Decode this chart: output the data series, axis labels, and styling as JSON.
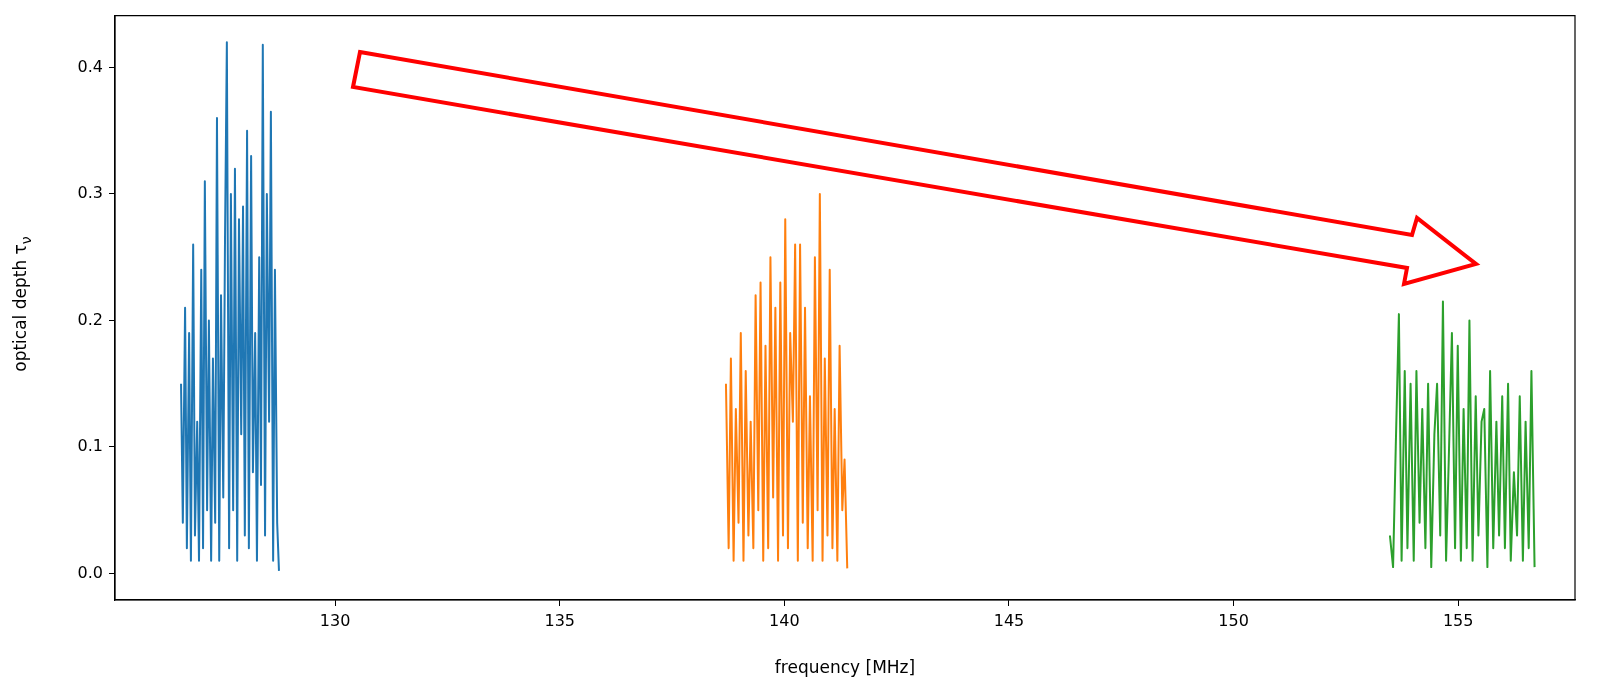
{
  "chart_data": {
    "type": "line",
    "xlabel": "frequency [MHz]",
    "ylabel": "optical depth τ$_{ν}$",
    "xlim": [
      125.1,
      157.6
    ],
    "xticks": [
      130,
      135,
      140,
      145,
      150,
      155
    ],
    "ylim": [
      -0.021,
      0.441
    ],
    "yticks": [
      {
        "value": 0,
        "label": "0.0"
      },
      0.1,
      0.2,
      0.3,
      0.4
    ],
    "grid": false,
    "legend": false,
    "marker": "none",
    "line_style": "solid",
    "series": [
      {
        "color": "#1f77b4",
        "x": [
          126.57,
          126.61,
          126.66,
          126.7,
          126.75,
          126.79,
          126.84,
          126.88,
          126.93,
          126.97,
          127.02,
          127.06,
          127.1,
          127.15,
          127.19,
          127.24,
          127.28,
          127.33,
          127.37,
          127.42,
          127.46,
          127.51,
          127.55,
          127.59,
          127.64,
          127.68,
          127.73,
          127.77,
          127.82,
          127.86,
          127.91,
          127.95,
          127.99,
          128.04,
          128.08,
          128.13,
          128.17,
          128.22,
          128.26,
          128.31,
          128.35,
          128.39,
          128.44,
          128.48,
          128.53,
          128.57,
          128.62,
          128.66,
          128.71,
          128.75
        ],
        "values": [
          0.15,
          0.04,
          0.21,
          0.02,
          0.19,
          0.01,
          0.26,
          0.03,
          0.12,
          0.01,
          0.24,
          0.02,
          0.31,
          0.05,
          0.2,
          0.01,
          0.17,
          0.04,
          0.36,
          0.01,
          0.22,
          0.06,
          0.27,
          0.42,
          0.02,
          0.3,
          0.05,
          0.32,
          0.01,
          0.28,
          0.11,
          0.29,
          0.03,
          0.35,
          0.02,
          0.33,
          0.08,
          0.19,
          0.01,
          0.25,
          0.07,
          0.418,
          0.03,
          0.3,
          0.12,
          0.365,
          0.01,
          0.24,
          0.04,
          0.002
        ]
      },
      {
        "color": "#ff7f0e",
        "x": [
          138.7,
          138.76,
          138.81,
          138.87,
          138.92,
          138.98,
          139.03,
          139.09,
          139.14,
          139.2,
          139.25,
          139.31,
          139.36,
          139.42,
          139.47,
          139.53,
          139.58,
          139.64,
          139.69,
          139.75,
          139.8,
          139.86,
          139.91,
          139.97,
          140.02,
          140.08,
          140.13,
          140.19,
          140.24,
          140.3,
          140.35,
          140.41,
          140.46,
          140.52,
          140.57,
          140.63,
          140.68,
          140.74,
          140.79,
          140.85,
          140.9,
          140.96,
          141.01,
          141.07,
          141.12,
          141.18,
          141.23,
          141.29,
          141.34,
          141.4
        ],
        "values": [
          0.15,
          0.02,
          0.17,
          0.01,
          0.13,
          0.04,
          0.19,
          0.01,
          0.16,
          0.03,
          0.12,
          0.02,
          0.22,
          0.05,
          0.23,
          0.01,
          0.18,
          0.02,
          0.25,
          0.06,
          0.21,
          0.01,
          0.23,
          0.03,
          0.28,
          0.02,
          0.19,
          0.12,
          0.26,
          0.01,
          0.26,
          0.04,
          0.21,
          0.02,
          0.14,
          0.01,
          0.25,
          0.05,
          0.3,
          0.01,
          0.17,
          0.03,
          0.24,
          0.02,
          0.13,
          0.01,
          0.18,
          0.05,
          0.09,
          0.004
        ]
      },
      {
        "color": "#2ca02c",
        "x": [
          153.48,
          153.55,
          153.61,
          153.68,
          153.74,
          153.81,
          153.87,
          153.94,
          154.01,
          154.07,
          154.14,
          154.2,
          154.27,
          154.33,
          154.4,
          154.47,
          154.53,
          154.6,
          154.66,
          154.73,
          154.79,
          154.86,
          154.93,
          154.99,
          155.06,
          155.12,
          155.19,
          155.25,
          155.32,
          155.39,
          155.45,
          155.52,
          155.58,
          155.65,
          155.71,
          155.78,
          155.85,
          155.91,
          155.98,
          156.04,
          156.11,
          156.17,
          156.24,
          156.31,
          156.37,
          156.44,
          156.5,
          156.57,
          156.63,
          156.7
        ],
        "values": [
          0.03,
          0.005,
          0.1,
          0.205,
          0.01,
          0.16,
          0.02,
          0.15,
          0.01,
          0.16,
          0.04,
          0.13,
          0.02,
          0.15,
          0.005,
          0.11,
          0.15,
          0.03,
          0.215,
          0.01,
          0.09,
          0.19,
          0.02,
          0.18,
          0.01,
          0.13,
          0.02,
          0.2,
          0.01,
          0.14,
          0.03,
          0.12,
          0.13,
          0.005,
          0.16,
          0.02,
          0.12,
          0.03,
          0.14,
          0.02,
          0.15,
          0.01,
          0.08,
          0.03,
          0.14,
          0.01,
          0.12,
          0.02,
          0.16,
          0.005
        ]
      }
    ]
  }
}
